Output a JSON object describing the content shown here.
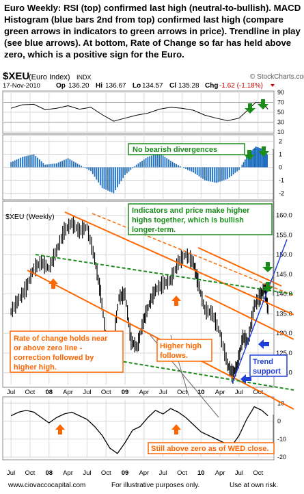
{
  "headline": "Euro Weekly:   RSI (top) confirmed last high (neutral-to-bullish). MACD Histogram (blue bars 2nd from top) confirmed last high (compare green arrows in indicators to green arrows in price). Trendline in play (see blue arrows).    At bottom, Rate of Change so far has held above zero, which is a positive sign for the Euro.",
  "header": {
    "symbol": "$XEU",
    "name": "(Euro Index)",
    "exchange": "INDX",
    "watermark": "© StockCharts.com",
    "date": "17-Nov-2010",
    "open_label": "Op",
    "open": "136.20",
    "high_label": "Hi",
    "high": "136.67",
    "low_label": "Lo",
    "low": "134.57",
    "close_label": "Cl",
    "close": "135.28",
    "chg_label": "Chg",
    "chg": "-1.62 (-1.18%)"
  },
  "price_panel_label": "$XEU (Weekly)",
  "annotations": {
    "no_divergence": "No bearish divergences",
    "higher_highs": "Indicators and price make higher highs together, which is bullish longer-term.",
    "roc_note": "Rate of change holds near or above zero line - correction followed by higher high.",
    "higher_high": "Higher high follows.",
    "trend_support": "Trend support",
    "still_above": "Still above zero as of WED close."
  },
  "footer": {
    "site": "www.ciovaccocapital.com",
    "illustrative": "For illustrative purposes only.",
    "risk": "Use at own risk."
  },
  "colors": {
    "background": "#ffffff",
    "panel_border": "#888888",
    "grid": "#d8d8d8",
    "price_bar": "#000000",
    "rsi_line": "#000000",
    "rsi_high_fill": "#2e8b2e",
    "rsi_low_fill": "#b03050",
    "macd_hist": "#1f6fc0",
    "roc_line": "#000000",
    "orange": "#ff6600",
    "green": "#1a8c1a",
    "blue": "#1f3fd8",
    "note_text": "#ff6600"
  },
  "chart_data": [
    {
      "panel": "rsi",
      "type": "line",
      "axis_ticks": [
        10,
        30,
        50,
        70,
        90
      ],
      "ylim": [
        10,
        90
      ],
      "x": [
        2007.5,
        2007.65,
        2007.8,
        2007.95,
        2008.1,
        2008.25,
        2008.4,
        2008.55,
        2008.7,
        2008.85,
        2009.0,
        2009.15,
        2009.3,
        2009.45,
        2009.6,
        2009.75,
        2009.9,
        2010.05,
        2010.2,
        2010.35,
        2010.5,
        2010.62,
        2010.72,
        2010.82,
        2010.88
      ],
      "values": [
        58,
        65,
        66,
        55,
        58,
        63,
        56,
        60,
        45,
        32,
        38,
        44,
        48,
        56,
        60,
        58,
        54,
        44,
        38,
        33,
        38,
        55,
        70,
        68,
        56
      ]
    },
    {
      "panel": "macd_histogram",
      "type": "bar",
      "x": [
        2007.5,
        2007.65,
        2007.8,
        2007.95,
        2008.1,
        2008.25,
        2008.4,
        2008.55,
        2008.7,
        2008.85,
        2009.0,
        2009.15,
        2009.3,
        2009.45,
        2009.6,
        2009.75,
        2009.9,
        2010.05,
        2010.2,
        2010.35,
        2010.5,
        2010.62,
        2010.72,
        2010.82,
        2010.88
      ],
      "values": [
        0.4,
        0.8,
        1.0,
        0.2,
        0.3,
        0.7,
        0.2,
        -0.3,
        -1.6,
        -2.0,
        -0.6,
        0.2,
        0.8,
        1.1,
        0.5,
        0.0,
        -0.4,
        -1.0,
        -1.2,
        -0.9,
        -0.2,
        1.0,
        1.6,
        1.4,
        0.9
      ]
    },
    {
      "panel": "price",
      "type": "line",
      "ylabel": "",
      "ylim": [
        117,
        162
      ],
      "axis_ticks": [
        120.0,
        125.0,
        130.0,
        135.0,
        140.0,
        145.0,
        150.0,
        155.0,
        160.0
      ],
      "x_ticks": [
        {
          "x": 2007.5,
          "label": "Jul"
        },
        {
          "x": 2007.75,
          "label": "Oct"
        },
        {
          "x": 2008.0,
          "label": "08"
        },
        {
          "x": 2008.25,
          "label": "Apr"
        },
        {
          "x": 2008.5,
          "label": "Jul"
        },
        {
          "x": 2008.75,
          "label": "Oct"
        },
        {
          "x": 2009.0,
          "label": "09"
        },
        {
          "x": 2009.25,
          "label": "Apr"
        },
        {
          "x": 2009.5,
          "label": "Jul"
        },
        {
          "x": 2009.75,
          "label": "Oct"
        },
        {
          "x": 2010.0,
          "label": "10"
        },
        {
          "x": 2010.25,
          "label": "Apr"
        },
        {
          "x": 2010.5,
          "label": "Jul"
        },
        {
          "x": 2010.75,
          "label": "Oct"
        }
      ],
      "x": [
        2007.5,
        2007.6,
        2007.7,
        2007.8,
        2007.9,
        2008.0,
        2008.1,
        2008.2,
        2008.3,
        2008.4,
        2008.5,
        2008.6,
        2008.68,
        2008.76,
        2008.84,
        2008.92,
        2009.0,
        2009.08,
        2009.16,
        2009.24,
        2009.32,
        2009.4,
        2009.5,
        2009.6,
        2009.7,
        2009.8,
        2009.9,
        2009.96,
        2010.05,
        2010.15,
        2010.25,
        2010.35,
        2010.42,
        2010.48,
        2010.55,
        2010.62,
        2010.7,
        2010.78,
        2010.84,
        2010.88
      ],
      "values": [
        135.5,
        138.5,
        141.5,
        146.5,
        148.0,
        146.5,
        151.0,
        156.0,
        158.0,
        156.0,
        157.0,
        149.0,
        140.0,
        127.0,
        127.0,
        139.0,
        140.0,
        128.0,
        126.5,
        133.0,
        137.5,
        141.0,
        142.5,
        143.5,
        148.0,
        150.0,
        148.0,
        143.0,
        136.0,
        135.0,
        130.0,
        122.0,
        119.5,
        122.0,
        129.0,
        128.0,
        137.0,
        139.5,
        141.5,
        136.0
      ]
    },
    {
      "panel": "rate_of_change",
      "type": "line",
      "axis_ticks": [
        -20,
        -10,
        0,
        10
      ],
      "ylim": [
        -20,
        12
      ],
      "x": [
        2007.5,
        2007.6,
        2007.7,
        2007.8,
        2007.9,
        2008.0,
        2008.1,
        2008.2,
        2008.3,
        2008.4,
        2008.5,
        2008.6,
        2008.7,
        2008.8,
        2008.9,
        2009.0,
        2009.1,
        2009.2,
        2009.3,
        2009.4,
        2009.5,
        2009.6,
        2009.7,
        2009.8,
        2009.9,
        2010.0,
        2010.1,
        2010.2,
        2010.3,
        2010.4,
        2010.5,
        2010.6,
        2010.7,
        2010.8,
        2010.88
      ],
      "values": [
        3,
        5,
        6,
        5,
        2,
        -1,
        2,
        4,
        5,
        3,
        1,
        -3,
        -8,
        -15,
        -18,
        -12,
        -5,
        -3,
        2,
        6,
        4,
        7,
        5,
        2,
        -2,
        -6,
        -8,
        -10,
        -12,
        -14,
        -8,
        1,
        8,
        6,
        3
      ]
    }
  ]
}
